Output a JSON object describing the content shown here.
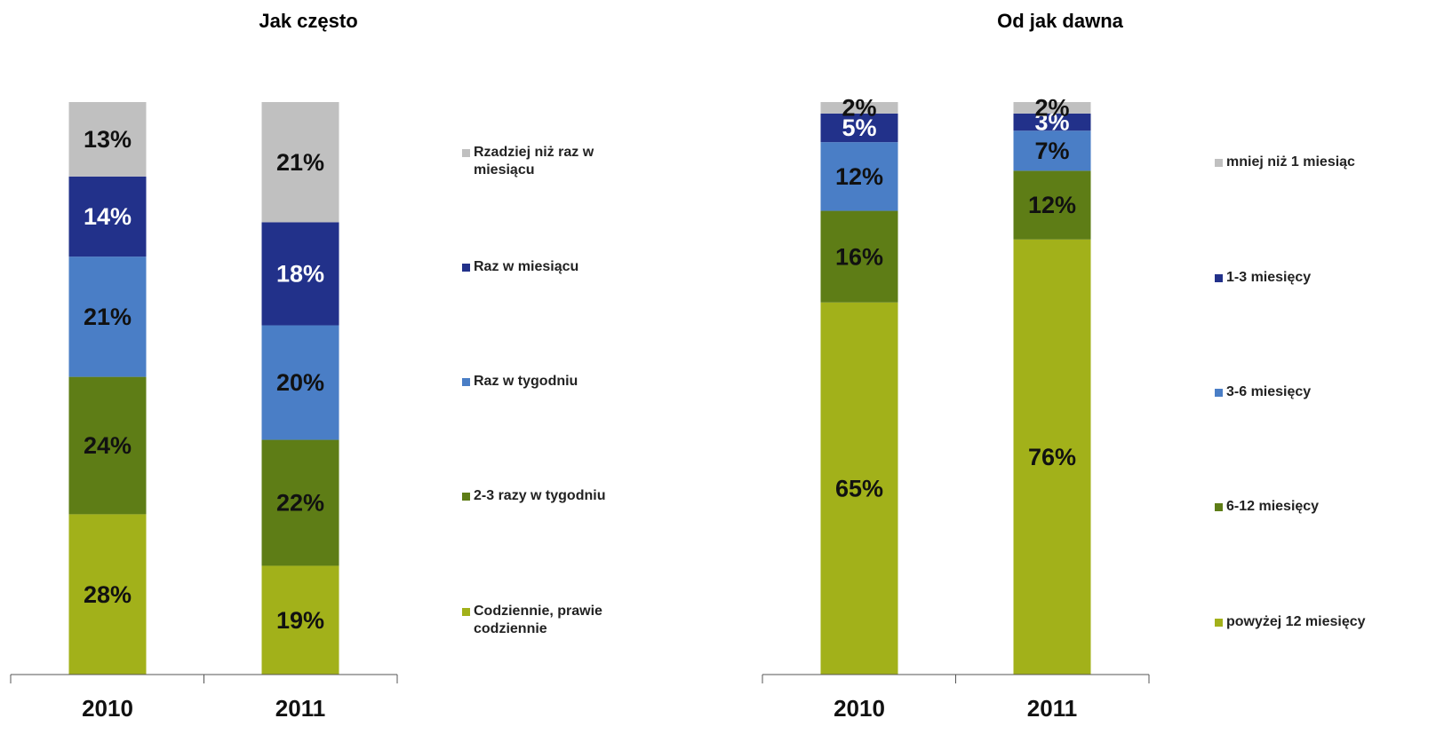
{
  "chart_data": [
    {
      "type": "stacked_bar",
      "title": "Jak często",
      "categories": [
        "2010",
        "2011"
      ],
      "ylim": [
        0,
        100
      ],
      "legend": "right",
      "series": [
        {
          "name": "Codziennie, prawie codziennie",
          "color": "#a2b11a",
          "values": [
            28,
            19
          ],
          "value_labels": [
            "28%",
            "19%"
          ]
        },
        {
          "name": "2-3 razy w tygodniu",
          "color": "#5e7d16",
          "values": [
            24,
            22
          ],
          "value_labels": [
            "24%",
            "22%"
          ]
        },
        {
          "name": "Raz w tygodniu",
          "color": "#4a7ec6",
          "values": [
            21,
            20
          ],
          "value_labels": [
            "21%",
            "20%"
          ]
        },
        {
          "name": "Raz w miesiącu",
          "color": "#22318a",
          "values": [
            14,
            18
          ],
          "value_labels": [
            "14%",
            "18%"
          ]
        },
        {
          "name": "Rzadziej niż raz w miesiącu",
          "color": "#c0c0c0",
          "values": [
            13,
            21
          ],
          "value_labels": [
            "13%",
            "21%"
          ]
        }
      ]
    },
    {
      "type": "stacked_bar",
      "title": "Od jak dawna",
      "categories": [
        "2010",
        "2011"
      ],
      "ylim": [
        0,
        100
      ],
      "legend": "right",
      "series": [
        {
          "name": "powyżej 12 miesięcy",
          "color": "#a2b11a",
          "values": [
            65,
            76
          ],
          "value_labels": [
            "65%",
            "76%"
          ]
        },
        {
          "name": "6-12 miesięcy",
          "color": "#5e7d16",
          "values": [
            16,
            12
          ],
          "value_labels": [
            "16%",
            "12%"
          ]
        },
        {
          "name": "3-6 miesięcy",
          "color": "#4a7ec6",
          "values": [
            12,
            7
          ],
          "value_labels": [
            "12%",
            "7%"
          ]
        },
        {
          "name": "1-3 miesięcy",
          "color": "#22318a",
          "values": [
            5,
            3
          ],
          "value_labels": [
            "5%",
            "3%"
          ]
        },
        {
          "name": "mniej niż 1 miesiąc",
          "color": "#c0c0c0",
          "values": [
            2,
            2
          ],
          "value_labels": [
            "2%",
            "2%"
          ]
        }
      ]
    }
  ]
}
